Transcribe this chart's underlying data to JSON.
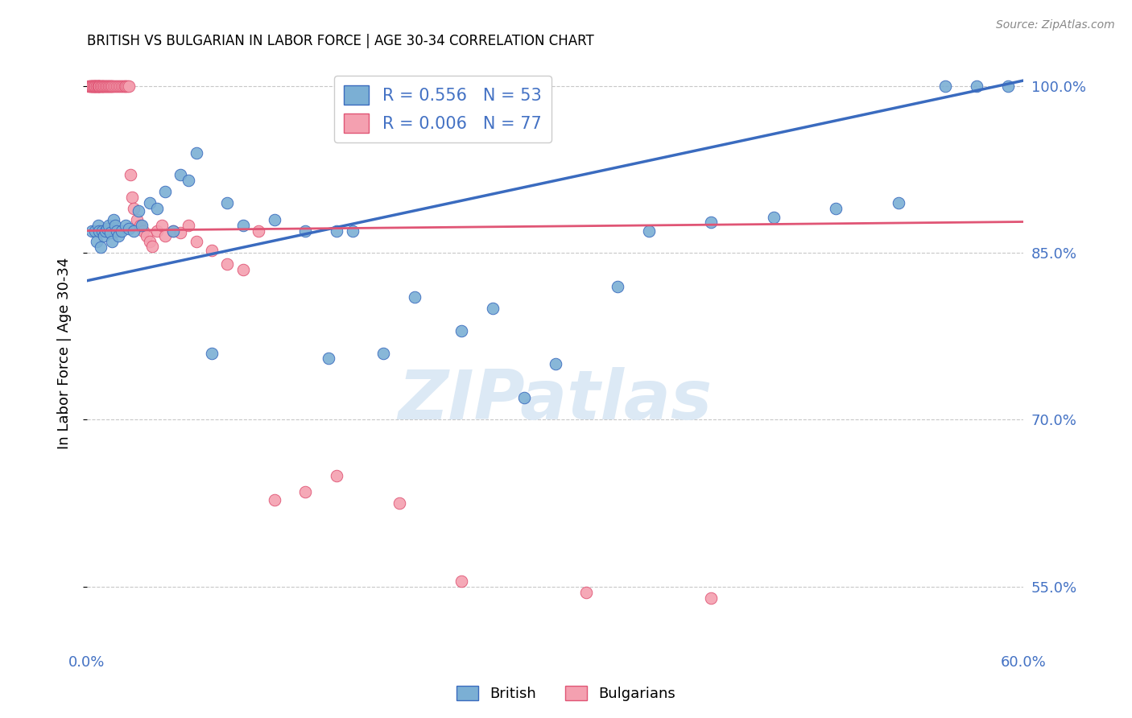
{
  "title": "BRITISH VS BULGARIAN IN LABOR FORCE | AGE 30-34 CORRELATION CHART",
  "source": "Source: ZipAtlas.com",
  "ylabel": "In Labor Force | Age 30-34",
  "xmin": 0.0,
  "xmax": 0.6,
  "ymin": 0.495,
  "ymax": 1.025,
  "ytick_vals": [
    0.55,
    0.7,
    0.85,
    1.0
  ],
  "ytick_labels": [
    "55.0%",
    "70.0%",
    "85.0%",
    "100.0%"
  ],
  "xtick_vals": [
    0.0,
    0.1,
    0.2,
    0.3,
    0.4,
    0.5,
    0.6
  ],
  "xtick_labels": [
    "0.0%",
    "",
    "",
    "",
    "",
    "",
    "60.0%"
  ],
  "r_british": 0.556,
  "n_british": 53,
  "r_bulgarian": 0.006,
  "n_bulgarian": 77,
  "british_color": "#7bafd4",
  "bulgarian_color": "#f4a0b0",
  "trendline_british_color": "#3a6bbf",
  "trendline_bulgarian_color": "#e05575",
  "brit_trendline_x": [
    0.0,
    0.6
  ],
  "brit_trendline_y": [
    0.825,
    1.005
  ],
  "bulg_trendline_x": [
    0.0,
    0.6
  ],
  "bulg_trendline_y": [
    0.87,
    0.878
  ],
  "british_x": [
    0.003,
    0.005,
    0.006,
    0.007,
    0.008,
    0.009,
    0.01,
    0.011,
    0.012,
    0.013,
    0.014,
    0.015,
    0.016,
    0.017,
    0.018,
    0.019,
    0.02,
    0.022,
    0.025,
    0.027,
    0.03,
    0.033,
    0.035,
    0.04,
    0.045,
    0.05,
    0.055,
    0.06,
    0.065,
    0.07,
    0.08,
    0.09,
    0.1,
    0.12,
    0.14,
    0.155,
    0.16,
    0.17,
    0.19,
    0.21,
    0.24,
    0.26,
    0.28,
    0.3,
    0.34,
    0.36,
    0.4,
    0.44,
    0.48,
    0.52,
    0.55,
    0.57,
    0.59
  ],
  "british_y": [
    0.87,
    0.87,
    0.86,
    0.875,
    0.87,
    0.855,
    0.87,
    0.865,
    0.87,
    0.872,
    0.875,
    0.868,
    0.86,
    0.88,
    0.875,
    0.87,
    0.865,
    0.87,
    0.875,
    0.872,
    0.87,
    0.888,
    0.875,
    0.895,
    0.89,
    0.905,
    0.87,
    0.92,
    0.915,
    0.94,
    0.76,
    0.895,
    0.875,
    0.88,
    0.87,
    0.755,
    0.87,
    0.87,
    0.76,
    0.81,
    0.78,
    0.8,
    0.72,
    0.75,
    0.82,
    0.87,
    0.878,
    0.882,
    0.89,
    0.895,
    1.0,
    1.0,
    1.0
  ],
  "bulgarian_x": [
    0.001,
    0.002,
    0.002,
    0.003,
    0.003,
    0.003,
    0.004,
    0.004,
    0.004,
    0.005,
    0.005,
    0.005,
    0.005,
    0.006,
    0.006,
    0.006,
    0.007,
    0.007,
    0.007,
    0.008,
    0.008,
    0.008,
    0.009,
    0.009,
    0.01,
    0.01,
    0.01,
    0.011,
    0.011,
    0.012,
    0.012,
    0.013,
    0.013,
    0.014,
    0.014,
    0.015,
    0.015,
    0.016,
    0.016,
    0.017,
    0.018,
    0.019,
    0.02,
    0.021,
    0.022,
    0.023,
    0.024,
    0.025,
    0.026,
    0.027,
    0.028,
    0.029,
    0.03,
    0.032,
    0.034,
    0.036,
    0.038,
    0.04,
    0.042,
    0.045,
    0.048,
    0.05,
    0.055,
    0.06,
    0.065,
    0.07,
    0.08,
    0.09,
    0.1,
    0.11,
    0.12,
    0.14,
    0.16,
    0.2,
    0.24,
    0.32,
    0.4
  ],
  "bulgarian_y": [
    1.0,
    1.0,
    1.0,
    1.0,
    1.0,
    1.0,
    1.0,
    1.0,
    1.0,
    1.0,
    1.0,
    1.0,
    1.0,
    1.0,
    1.0,
    1.0,
    1.0,
    1.0,
    1.0,
    1.0,
    1.0,
    1.0,
    1.0,
    1.0,
    1.0,
    1.0,
    1.0,
    1.0,
    1.0,
    1.0,
    1.0,
    1.0,
    1.0,
    1.0,
    1.0,
    1.0,
    1.0,
    1.0,
    1.0,
    1.0,
    1.0,
    1.0,
    1.0,
    1.0,
    1.0,
    1.0,
    1.0,
    1.0,
    1.0,
    1.0,
    0.92,
    0.9,
    0.89,
    0.88,
    0.875,
    0.87,
    0.865,
    0.86,
    0.856,
    0.87,
    0.875,
    0.865,
    0.87,
    0.868,
    0.875,
    0.86,
    0.852,
    0.84,
    0.835,
    0.87,
    0.628,
    0.635,
    0.65,
    0.625,
    0.555,
    0.545,
    0.54
  ],
  "legend_labels": [
    "British",
    "Bulgarians"
  ],
  "background_color": "#ffffff",
  "grid_color": "#c8c8c8",
  "axis_label_color": "#4472c4",
  "tick_label_color": "#4472c4",
  "watermark_color": "#dce9f5"
}
